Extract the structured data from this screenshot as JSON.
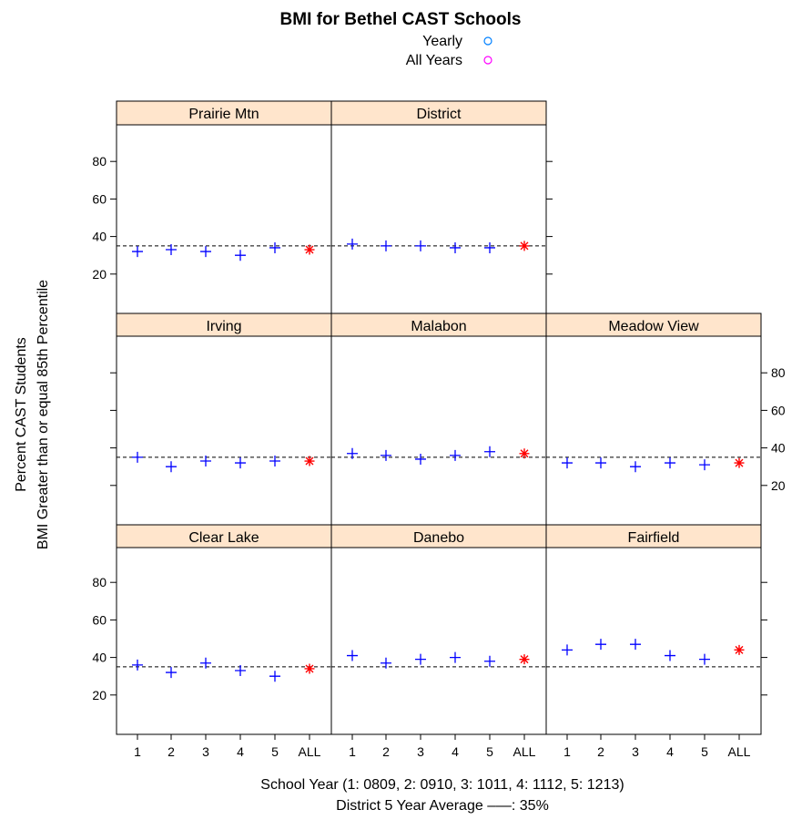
{
  "chart_data": {
    "type": "scatter",
    "title": "BMI for Bethel CAST Schools",
    "legend": [
      {
        "label": "Yearly",
        "color": "#0080ff"
      },
      {
        "label": "All Years",
        "color": "#ff00ff"
      }
    ],
    "ylabel_line1": "Percent CAST Students",
    "ylabel_line2": "BMI Greater than or equal  85th Percentile",
    "xlabel_line1": "School Year (1: 0809, 2: 0910, 3: 1011, 4: 1112, 5: 1213)",
    "xlabel_line2": "District 5 Year Average  –––: 35%",
    "categories": [
      "1",
      "2",
      "3",
      "4",
      "5",
      "ALL"
    ],
    "y_ticks": [
      20,
      40,
      60,
      80
    ],
    "ylim": [
      0,
      100
    ],
    "reference_line": 35,
    "colors": {
      "yearly_marker": "#0000ff",
      "all_years_marker": "#ff0000",
      "strip_fill": "#ffe5cc",
      "reference_line": "#000000"
    },
    "panels": [
      {
        "name": "Prairie Mtn",
        "values": [
          32,
          33,
          32,
          30,
          34,
          33
        ]
      },
      {
        "name": "District",
        "values": [
          36,
          35,
          35,
          34,
          34,
          35
        ]
      },
      {
        "name": "Irving",
        "values": [
          35,
          30,
          33,
          32,
          33,
          33
        ]
      },
      {
        "name": "Malabon",
        "values": [
          37,
          36,
          34,
          36,
          38,
          37
        ]
      },
      {
        "name": "Meadow View",
        "values": [
          32,
          32,
          30,
          32,
          31,
          32
        ]
      },
      {
        "name": "Clear Lake",
        "values": [
          36,
          32,
          37,
          33,
          30,
          34
        ]
      },
      {
        "name": "Danebo",
        "values": [
          41,
          37,
          39,
          40,
          38,
          39
        ]
      },
      {
        "name": "Fairfield",
        "values": [
          44,
          47,
          47,
          41,
          39,
          44
        ]
      }
    ]
  }
}
